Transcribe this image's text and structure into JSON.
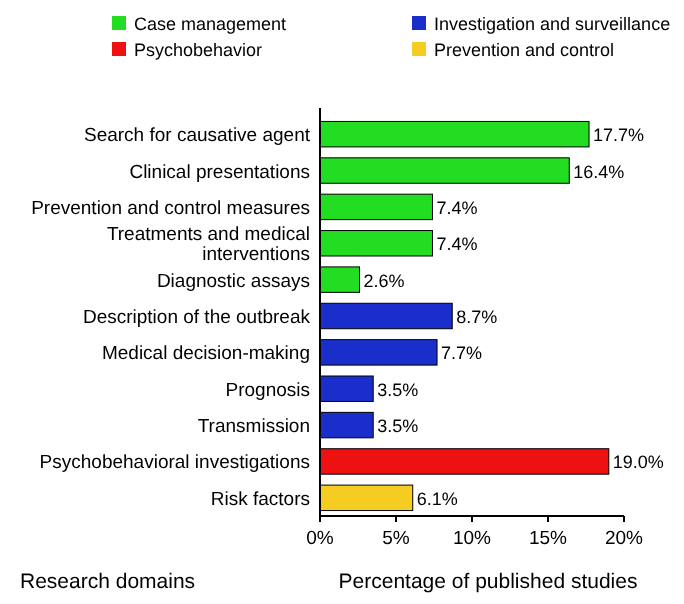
{
  "chart_data": {
    "type": "bar",
    "orientation": "horizontal",
    "legend": "top",
    "xlabel": "Percentage of published studies",
    "ylabel": "Research domains",
    "categories": [
      "Search for causative agent",
      "Clinical presentations",
      "Prevention and control measures",
      "Treatments and medical interventions",
      "Diagnostic assays",
      "Description of the outbreak",
      "Medical decision-making",
      "Prognosis",
      "Transmission",
      "Psychobehavioral investigations",
      "Risk factors"
    ],
    "series": [
      {
        "name": "Case management",
        "color": "#22dd22",
        "values": [
          17.7,
          16.4,
          7.4,
          7.4,
          2.6,
          null,
          null,
          null,
          null,
          null,
          null
        ],
        "value_labels": [
          "17.7%",
          "16.4%",
          "7.4%",
          "7.4%",
          "2.6%",
          null,
          null,
          null,
          null,
          null,
          null
        ]
      },
      {
        "name": "Investigation and surveillance",
        "color": "#1a2ecc",
        "values": [
          null,
          null,
          null,
          null,
          null,
          8.7,
          7.7,
          3.5,
          3.5,
          null,
          null
        ],
        "value_labels": [
          null,
          null,
          null,
          null,
          null,
          "8.7%",
          "7.7%",
          "3.5%",
          "3.5%",
          null,
          null
        ]
      },
      {
        "name": "Psychobehavior",
        "color": "#ee1111",
        "values": [
          null,
          null,
          null,
          null,
          null,
          null,
          null,
          null,
          null,
          19.0,
          null
        ],
        "value_labels": [
          null,
          null,
          null,
          null,
          null,
          null,
          null,
          null,
          null,
          "19.0%",
          null
        ]
      },
      {
        "name": "Prevention and control",
        "color": "#f5cc22",
        "values": [
          null,
          null,
          null,
          null,
          null,
          null,
          null,
          null,
          null,
          null,
          6.1
        ],
        "value_labels": [
          null,
          null,
          null,
          null,
          null,
          null,
          null,
          null,
          null,
          null,
          "6.1%"
        ]
      }
    ],
    "xlim": [
      0,
      20
    ],
    "xticks": [
      {
        "value": 0,
        "label": "0%"
      },
      {
        "value": 5,
        "label": "5%"
      },
      {
        "value": 10,
        "label": "10%"
      },
      {
        "value": 15,
        "label": "15%"
      },
      {
        "value": 20,
        "label": "20%"
      }
    ]
  }
}
